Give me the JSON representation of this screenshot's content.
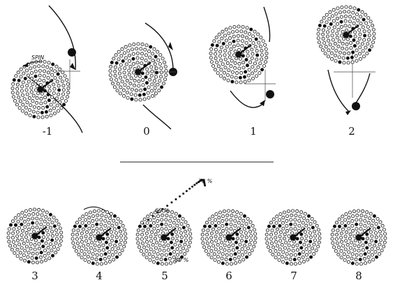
{
  "figure": {
    "top_row": {
      "frames": [
        {
          "label": "-1",
          "spin_label": "SPIN"
        },
        {
          "label": "0"
        },
        {
          "label": "1"
        },
        {
          "label": "2"
        }
      ]
    },
    "bottom_row": {
      "frames": [
        {
          "label": "3"
        },
        {
          "label": "4"
        },
        {
          "label": "5",
          "annotations": [
            "70 %",
            "60 %",
            "50 %"
          ]
        },
        {
          "label": "6"
        },
        {
          "label": "7"
        },
        {
          "label": "8"
        }
      ]
    },
    "colors": {
      "ink": "#111111",
      "paper": "#ffffff"
    }
  }
}
